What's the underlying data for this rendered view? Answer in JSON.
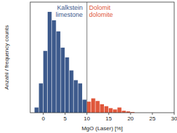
{
  "chart_data": {
    "type": "histogram",
    "x_label": "MgO (Laser) [%]",
    "y_label": "Anzahl / frequency counts",
    "bins": [
      -2,
      -1,
      0,
      1,
      2,
      3,
      4,
      5,
      6,
      7,
      8,
      9,
      10,
      11,
      12,
      13,
      14,
      15,
      16,
      17,
      18,
      19,
      20,
      21
    ],
    "values": [
      8,
      45,
      95,
      155,
      142,
      125,
      100,
      85,
      65,
      50,
      45,
      20,
      17,
      22,
      18,
      13,
      10,
      7,
      5,
      8,
      3,
      2,
      1
    ],
    "colors": [
      "#3d5a8c",
      "#3d5a8c",
      "#3d5a8c",
      "#3d5a8c",
      "#3d5a8c",
      "#3d5a8c",
      "#3d5a8c",
      "#3d5a8c",
      "#3d5a8c",
      "#3d5a8c",
      "#3d5a8c",
      "#3d5a8c",
      "#e0573b",
      "#e0573b",
      "#e0573b",
      "#e0573b",
      "#e0573b",
      "#e0573b",
      "#e0573b",
      "#e0573b",
      "#e0573b",
      "#e0573b",
      "#e0573b"
    ],
    "threshold": 10,
    "annotations": [
      {
        "lines": [
          "Kalkstein",
          "limestone"
        ],
        "color": "#3d5a8c"
      },
      {
        "lines": [
          "Dolomit",
          "dolomite"
        ],
        "color": "#e0573b"
      }
    ],
    "xlim": [
      -3,
      30
    ],
    "xticks": [
      0,
      5,
      10,
      15,
      20,
      25,
      30
    ],
    "ylim": [
      0,
      170
    ],
    "tick_labels": "x"
  }
}
